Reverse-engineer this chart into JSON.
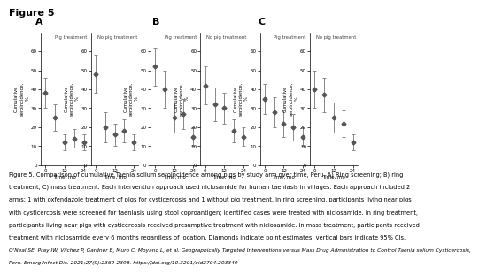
{
  "title": "Figure 5",
  "panels": [
    "A",
    "B",
    "C"
  ],
  "subtitles_left": [
    "Pig treatment",
    "Pig treatment",
    "Pig treatment"
  ],
  "subtitles_right": [
    "No pig treatment",
    "No pig treatment",
    "No pig treatment"
  ],
  "xlabel": "Time, mo",
  "ylabel": "Cumulative\nseroincidence,\n%",
  "xticks": [
    0,
    12,
    24
  ],
  "ylim": [
    0,
    70
  ],
  "yticks": [
    0,
    10,
    20,
    30,
    40,
    50,
    60
  ],
  "panel_data": {
    "A": {
      "pig": {
        "x": [
          0,
          6,
          12,
          18,
          24
        ],
        "y": [
          38,
          25,
          12,
          14,
          12
        ],
        "yerr_low": [
          8,
          7,
          4,
          5,
          4
        ],
        "yerr_high": [
          8,
          7,
          4,
          5,
          4
        ]
      },
      "nopig": {
        "x": [
          0,
          6,
          12,
          18,
          24
        ],
        "y": [
          48,
          20,
          16,
          18,
          12
        ],
        "yerr_low": [
          10,
          8,
          6,
          6,
          4
        ],
        "yerr_high": [
          10,
          8,
          6,
          6,
          4
        ]
      }
    },
    "B": {
      "pig": {
        "x": [
          0,
          6,
          12,
          18,
          24
        ],
        "y": [
          52,
          40,
          25,
          27,
          15
        ],
        "yerr_low": [
          10,
          10,
          8,
          8,
          5
        ],
        "yerr_high": [
          10,
          10,
          8,
          8,
          5
        ]
      },
      "nopig": {
        "x": [
          0,
          6,
          12,
          18,
          24
        ],
        "y": [
          42,
          32,
          30,
          18,
          15
        ],
        "yerr_low": [
          10,
          9,
          8,
          6,
          5
        ],
        "yerr_high": [
          10,
          9,
          8,
          6,
          5
        ]
      }
    },
    "C": {
      "pig": {
        "x": [
          0,
          6,
          12,
          18,
          24
        ],
        "y": [
          35,
          28,
          22,
          20,
          15
        ],
        "yerr_low": [
          8,
          8,
          7,
          7,
          5
        ],
        "yerr_high": [
          8,
          8,
          7,
          7,
          5
        ]
      },
      "nopig": {
        "x": [
          0,
          6,
          12,
          18,
          24
        ],
        "y": [
          40,
          37,
          25,
          22,
          12
        ],
        "yerr_low": [
          10,
          9,
          8,
          7,
          4
        ],
        "yerr_high": [
          10,
          9,
          8,
          7,
          4
        ]
      }
    }
  },
  "marker_style": "D",
  "marker_size": 2.5,
  "marker_color": "#555555",
  "errorbar_color": "#888888",
  "caption_lines": [
    "Figure 5. Comparison of cumulative Taenia solium seroincidence among pigs by study arm over time, Peru. A) Ring screening; B) ring",
    "treatment; C) mass treatment. Each intervention approach used niclosamide for human taeniasis in villages. Each approach included 2",
    "arms: 1 with oxfendazole treatment of pigs for cysticercosis and 1 without pig treatment. In ring screening, participants living near pigs",
    "with cysticercosis were screened for taeniasis using stool coproantigen; identified cases were treated with niclosamide. In ring treatment,",
    "participants living near pigs with cysticercosis received presumptive treatment with niclosamide. In mass treatment, participants received",
    "treatment with niclosamide every 6 months regardless of location. Diamonds indicate point estimates; vertical bars indicate 95% CIs.",
    "O'Neal SE, Pray IW, Vilchez P, Gardner B, Muro C, Moyano L, et al. Geographically Targeted Interventions versus Mass Drug Administration to Control Taenia solium Cysticercosis,",
    "Peru. Emerg Infect Dis. 2021;27(9):2369-2398. https://doi.org/10.3201/eid2704.203349"
  ],
  "caption_fontsize": 4.8,
  "ref_fontsize": 4.2
}
